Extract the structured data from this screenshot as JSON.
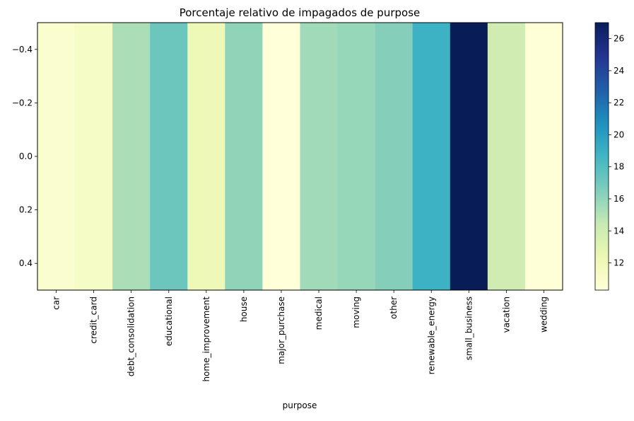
{
  "chart_data": {
    "type": "heatmap",
    "title": "Porcentaje relativo de impagados de purpose",
    "xlabel": "purpose",
    "ylabel": "",
    "categories": [
      "car",
      "credit_card",
      "debt_consolidation",
      "educational",
      "home_improvement",
      "house",
      "major_purchase",
      "medical",
      "moving",
      "other",
      "renewable_energy",
      "small_business",
      "vacation",
      "wedding"
    ],
    "values": [
      10.9,
      11.3,
      15.3,
      17.2,
      12.1,
      16.1,
      10.3,
      15.6,
      15.9,
      16.4,
      18.9,
      27.0,
      14.0,
      10.4
    ],
    "yticks": [
      -0.4,
      -0.2,
      0.0,
      0.2,
      0.4
    ],
    "ytick_labels": [
      "−0.4",
      "−0.2",
      "0.0",
      "0.2",
      "0.4"
    ],
    "ylim": [
      -0.5,
      0.5
    ],
    "colorbar": {
      "min": 10.3,
      "max": 27.0,
      "ticks": [
        12,
        14,
        16,
        18,
        20,
        22,
        24,
        26
      ],
      "colormap": "YlGnBu"
    },
    "grid": false,
    "legend": "none"
  }
}
